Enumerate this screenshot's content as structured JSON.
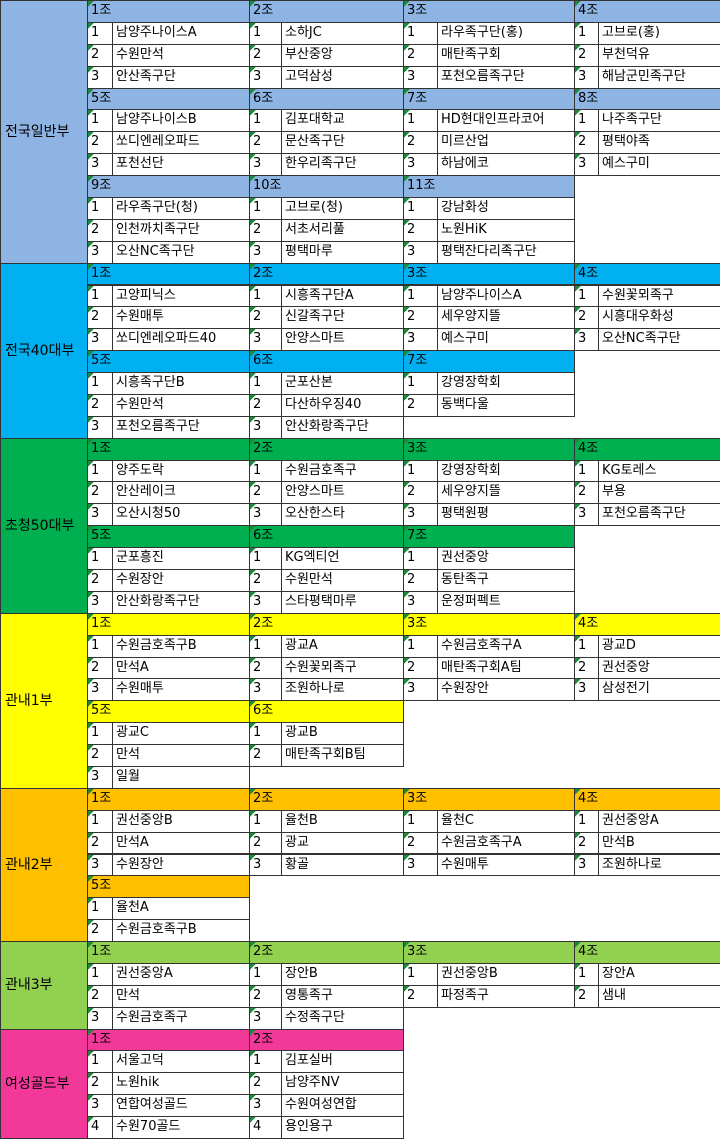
{
  "divisions": [
    {
      "name": "전국일반부",
      "color": "#8eb4e3",
      "rows": [
        {
          "groups": [
            {
              "label": "1조",
              "teams": [
                [
                  1,
                  "남양주나이스A"
                ],
                [
                  2,
                  "수원만석"
                ],
                [
                  3,
                  "안산족구단"
                ]
              ]
            },
            {
              "label": "2조",
              "teams": [
                [
                  1,
                  "소하JC"
                ],
                [
                  2,
                  "부산중앙"
                ],
                [
                  3,
                  "고덕삼성"
                ]
              ]
            },
            {
              "label": "3조",
              "teams": [
                [
                  1,
                  "라우족구단(홍)"
                ],
                [
                  2,
                  "매탄족구회"
                ],
                [
                  3,
                  "포천오름족구단"
                ]
              ]
            },
            {
              "label": "4조",
              "teams": [
                [
                  1,
                  "고브로(홍)"
                ],
                [
                  2,
                  "부천덕유"
                ],
                [
                  3,
                  "해남군민족구단"
                ]
              ]
            }
          ]
        },
        {
          "groups": [
            {
              "label": "5조",
              "teams": [
                [
                  1,
                  "남양주나이스B"
                ],
                [
                  2,
                  "쏘디엔레오파드"
                ],
                [
                  3,
                  "포천선단"
                ]
              ]
            },
            {
              "label": "6조",
              "teams": [
                [
                  1,
                  "김포대학교"
                ],
                [
                  2,
                  "문산족구단"
                ],
                [
                  3,
                  "한우리족구단"
                ]
              ]
            },
            {
              "label": "7조",
              "teams": [
                [
                  1,
                  "HD현대인프라코어"
                ],
                [
                  2,
                  "미르산업"
                ],
                [
                  3,
                  "하남에코"
                ]
              ]
            },
            {
              "label": "8조",
              "teams": [
                [
                  1,
                  "나주족구단"
                ],
                [
                  2,
                  "평택야족"
                ],
                [
                  3,
                  "예스구미"
                ]
              ]
            }
          ]
        },
        {
          "groups": [
            {
              "label": "9조",
              "teams": [
                [
                  1,
                  "라우족구단(청)"
                ],
                [
                  2,
                  "인천까치족구단"
                ],
                [
                  3,
                  "오산NC족구단"
                ]
              ]
            },
            {
              "label": "10조",
              "teams": [
                [
                  1,
                  "고브로(청)"
                ],
                [
                  2,
                  "서초서리풀"
                ],
                [
                  3,
                  "평택마루"
                ]
              ]
            },
            {
              "label": "11조",
              "teams": [
                [
                  1,
                  "강남화성"
                ],
                [
                  2,
                  "노원HiK"
                ],
                [
                  3,
                  "평택잔다리족구단"
                ]
              ]
            }
          ]
        }
      ]
    },
    {
      "name": "전국40대부",
      "color": "#00b0f0",
      "rows": [
        {
          "groups": [
            {
              "label": "1조",
              "teams": [
                [
                  1,
                  "고양피닉스"
                ],
                [
                  2,
                  "수원매투"
                ],
                [
                  3,
                  "쏘디엔레오파드40"
                ]
              ]
            },
            {
              "label": "2조",
              "teams": [
                [
                  1,
                  "시흥족구단A"
                ],
                [
                  2,
                  "신갈족구단"
                ],
                [
                  3,
                  "안양스마트"
                ]
              ]
            },
            {
              "label": "3조",
              "teams": [
                [
                  1,
                  "남양주나이스A"
                ],
                [
                  2,
                  "세우양지뜰"
                ],
                [
                  3,
                  "예스구미"
                ]
              ]
            },
            {
              "label": "4조",
              "teams": [
                [
                  1,
                  "수원꽃뫼족구"
                ],
                [
                  2,
                  "시흥대우화성"
                ],
                [
                  3,
                  "오산NC족구단"
                ]
              ]
            }
          ]
        },
        {
          "groups": [
            {
              "label": "5조",
              "teams": [
                [
                  1,
                  "시흥족구단B"
                ],
                [
                  2,
                  "수원만석"
                ],
                [
                  3,
                  "포천오름족구단"
                ]
              ]
            },
            {
              "label": "6조",
              "teams": [
                [
                  1,
                  "군포산본"
                ],
                [
                  2,
                  "다산하우징40"
                ],
                [
                  3,
                  "안산화랑족구단"
                ]
              ]
            },
            {
              "label": "7조",
              "teams": [
                [
                  1,
                  "강영장학회"
                ],
                [
                  2,
                  "동백다울"
                ]
              ]
            }
          ]
        }
      ]
    },
    {
      "name": "초청50대부",
      "color": "#00b050",
      "rows": [
        {
          "groups": [
            {
              "label": "1조",
              "teams": [
                [
                  1,
                  "양주도락"
                ],
                [
                  2,
                  "안산레이크"
                ],
                [
                  3,
                  "오산시청50"
                ]
              ]
            },
            {
              "label": "2조",
              "teams": [
                [
                  1,
                  "수원금호족구"
                ],
                [
                  2,
                  "안양스마트"
                ],
                [
                  3,
                  "오산한스타"
                ]
              ]
            },
            {
              "label": "3조",
              "teams": [
                [
                  1,
                  "강영장학회"
                ],
                [
                  2,
                  "세우양지뜰"
                ],
                [
                  3,
                  "평택원평"
                ]
              ]
            },
            {
              "label": "4조",
              "teams": [
                [
                  1,
                  "KG토레스"
                ],
                [
                  2,
                  "부용"
                ],
                [
                  3,
                  "포천오름족구단"
                ]
              ]
            }
          ]
        },
        {
          "groups": [
            {
              "label": "5조",
              "teams": [
                [
                  1,
                  "군포흥진"
                ],
                [
                  2,
                  "수원장안"
                ],
                [
                  3,
                  "안산화랑족구단"
                ]
              ]
            },
            {
              "label": "6조",
              "teams": [
                [
                  1,
                  "KG엑티언"
                ],
                [
                  2,
                  "수원만석"
                ],
                [
                  3,
                  "스타평택마루"
                ]
              ]
            },
            {
              "label": "7조",
              "teams": [
                [
                  1,
                  "권선중앙"
                ],
                [
                  2,
                  "동탄족구"
                ],
                [
                  3,
                  "운정퍼펙트"
                ]
              ]
            }
          ]
        }
      ]
    },
    {
      "name": "관내1부",
      "color": "#ffff00",
      "rows": [
        {
          "groups": [
            {
              "label": "1조",
              "teams": [
                [
                  1,
                  "수원금호족구B"
                ],
                [
                  2,
                  "만석A"
                ],
                [
                  3,
                  "수원매투"
                ]
              ]
            },
            {
              "label": "2조",
              "teams": [
                [
                  1,
                  "광교A"
                ],
                [
                  2,
                  "수원꽃뫼족구"
                ],
                [
                  3,
                  "조원하나로"
                ]
              ]
            },
            {
              "label": "3조",
              "teams": [
                [
                  1,
                  "수원금호족구A"
                ],
                [
                  2,
                  "매탄족구회A팀"
                ],
                [
                  3,
                  "수원장안"
                ]
              ]
            },
            {
              "label": "4조",
              "teams": [
                [
                  1,
                  "광교D"
                ],
                [
                  2,
                  "권선중앙"
                ],
                [
                  3,
                  "삼성전기"
                ]
              ]
            }
          ]
        },
        {
          "groups": [
            {
              "label": "5조",
              "teams": [
                [
                  1,
                  "광교C"
                ],
                [
                  2,
                  "만석"
                ],
                [
                  3,
                  "일월"
                ]
              ]
            },
            {
              "label": "6조",
              "teams": [
                [
                  1,
                  "광교B"
                ],
                [
                  2,
                  "매탄족구회B팀"
                ]
              ]
            }
          ]
        }
      ]
    },
    {
      "name": "관내2부",
      "color": "#ffc000",
      "rows": [
        {
          "groups": [
            {
              "label": "1조",
              "teams": [
                [
                  1,
                  "권선중앙B"
                ],
                [
                  2,
                  "만석A"
                ],
                [
                  3,
                  "수원장안"
                ]
              ]
            },
            {
              "label": "2조",
              "teams": [
                [
                  1,
                  "율천B"
                ],
                [
                  2,
                  "광교"
                ],
                [
                  3,
                  "황골"
                ]
              ]
            },
            {
              "label": "3조",
              "teams": [
                [
                  1,
                  "율천C"
                ],
                [
                  2,
                  "수원금호족구A"
                ],
                [
                  3,
                  "수원매투"
                ]
              ]
            },
            {
              "label": "4조",
              "teams": [
                [
                  1,
                  "권선중앙A"
                ],
                [
                  2,
                  "만석B"
                ],
                [
                  3,
                  "조원하나로"
                ]
              ]
            }
          ]
        },
        {
          "groups": [
            {
              "label": "5조",
              "teams": [
                [
                  1,
                  "율천A"
                ],
                [
                  2,
                  "수원금호족구B"
                ]
              ]
            }
          ]
        }
      ]
    },
    {
      "name": "관내3부",
      "color": "#92d050",
      "rows": [
        {
          "groups": [
            {
              "label": "1조",
              "teams": [
                [
                  1,
                  "권선중앙A"
                ],
                [
                  2,
                  "만석"
                ],
                [
                  3,
                  "수원금호족구"
                ]
              ]
            },
            {
              "label": "2조",
              "teams": [
                [
                  1,
                  "장안B"
                ],
                [
                  2,
                  "영통족구"
                ],
                [
                  3,
                  "수정족구단"
                ]
              ]
            },
            {
              "label": "3조",
              "teams": [
                [
                  1,
                  "권선중앙B"
                ],
                [
                  2,
                  "파정족구"
                ]
              ]
            },
            {
              "label": "4조",
              "teams": [
                [
                  1,
                  "장안A"
                ],
                [
                  2,
                  "샘내"
                ]
              ]
            }
          ]
        }
      ]
    },
    {
      "name": "여성골드부",
      "color": "#f2399a",
      "rows": [
        {
          "groups": [
            {
              "label": "1조",
              "teams": [
                [
                  1,
                  "서울고덕"
                ],
                [
                  2,
                  "노원hik"
                ],
                [
                  3,
                  "연합여성골드"
                ],
                [
                  4,
                  "수원70골드"
                ]
              ]
            },
            {
              "label": "2조",
              "teams": [
                [
                  1,
                  "김포실버"
                ],
                [
                  2,
                  "남양주NV"
                ],
                [
                  3,
                  "수원여성연합"
                ],
                [
                  4,
                  "용인용구"
                ]
              ]
            }
          ]
        }
      ]
    }
  ]
}
